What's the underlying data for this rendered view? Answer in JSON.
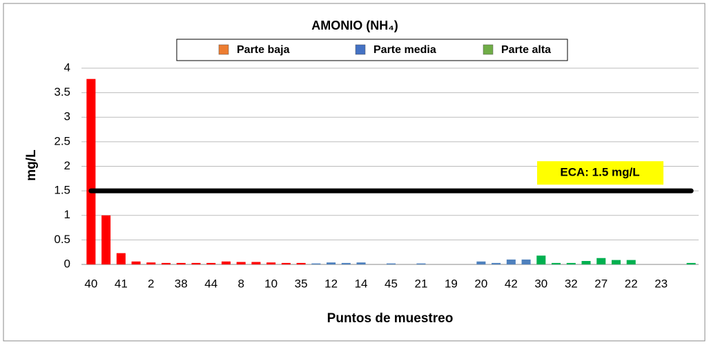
{
  "chart_data": {
    "type": "bar",
    "title": "AMONIO (NH₄)",
    "y_label": "mg/L",
    "x_label": "Puntos de muestreo",
    "categories": [
      "40",
      null,
      "41",
      null,
      "2",
      null,
      "38",
      null,
      "44",
      null,
      "8",
      null,
      "10",
      null,
      "35",
      null,
      "12",
      null,
      "14",
      null,
      "45",
      null,
      "21",
      null,
      "19",
      null,
      "20",
      null,
      "42",
      null,
      "30",
      null,
      "32",
      null,
      "27",
      null,
      "22",
      null,
      "23",
      null,
      null
    ],
    "series": [
      {
        "name": "Parte baja",
        "color": "#ed7d31",
        "bar_color": "#ff0000",
        "values": [
          3.78,
          1.0,
          0.23,
          0.06,
          0.04,
          0.03,
          0.03,
          0.03,
          0.03,
          0.06,
          0.05,
          0.05,
          0.04,
          0.03,
          0.03,
          null,
          null,
          null,
          null,
          null,
          null,
          null,
          null,
          null,
          null,
          null,
          null,
          null,
          null,
          null,
          null,
          null,
          null,
          null,
          null,
          null,
          null,
          null,
          null,
          null,
          null
        ]
      },
      {
        "name": "Parte media",
        "color": "#4472c4",
        "bar_color": "#4f81bd",
        "values": [
          null,
          null,
          null,
          null,
          null,
          null,
          null,
          null,
          null,
          null,
          null,
          null,
          null,
          null,
          null,
          0.02,
          0.04,
          0.03,
          0.04,
          0,
          0.02,
          0,
          0.02,
          0,
          0,
          0,
          0.06,
          0.03,
          0.1,
          0.1,
          null,
          null,
          null,
          null,
          null,
          null,
          null,
          null,
          null,
          null,
          null
        ]
      },
      {
        "name": "Parte alta",
        "color": "#70ad47",
        "bar_color": "#00b050",
        "values": [
          null,
          null,
          null,
          null,
          null,
          null,
          null,
          null,
          null,
          null,
          null,
          null,
          null,
          null,
          null,
          null,
          null,
          null,
          null,
          null,
          null,
          null,
          null,
          null,
          null,
          null,
          null,
          null,
          null,
          null,
          0.18,
          0.03,
          0.03,
          0.07,
          0.13,
          0.09,
          0.09,
          0,
          0,
          0,
          0.03
        ]
      }
    ],
    "threshold": {
      "value": 1.5,
      "label": "ECA: 1.5 mg/L"
    },
    "ylim": [
      0,
      4
    ],
    "yticks": [
      0,
      0.5,
      1,
      1.5,
      2,
      2.5,
      3,
      3.5,
      4
    ],
    "grid": true
  }
}
